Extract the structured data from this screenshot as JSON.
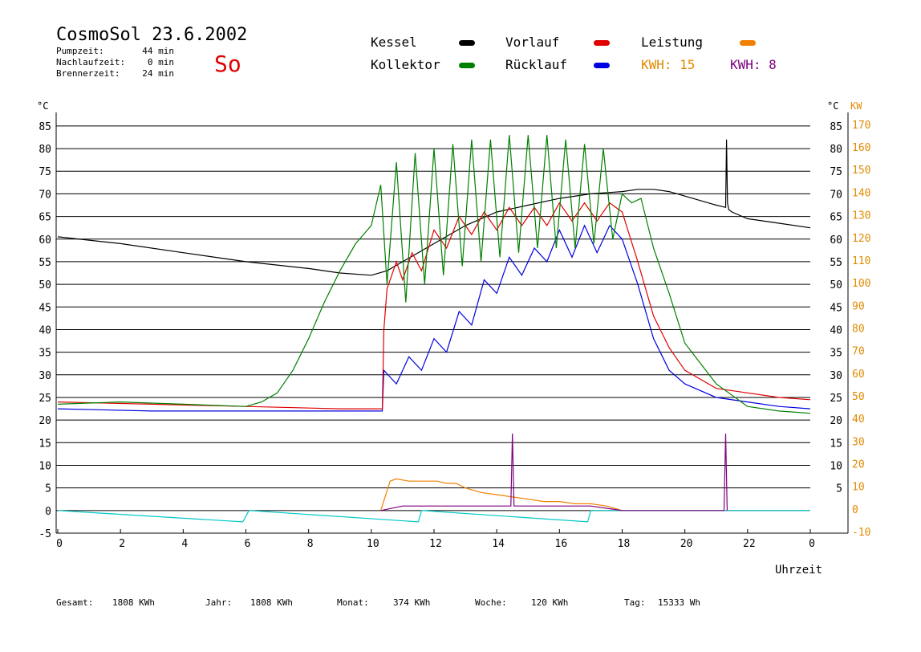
{
  "header": {
    "title": "CosmoSol 23.6.2002",
    "day": "So",
    "stats": [
      {
        "label": "Pumpzeit:",
        "value": "44 min"
      },
      {
        "label": "Nachlaufzeit:",
        "value": "0 min"
      },
      {
        "label": "Brennerzeit:",
        "value": "24 min"
      }
    ]
  },
  "legend": {
    "items": [
      {
        "label": "Kessel",
        "color": "#000000"
      },
      {
        "label": "Vorlauf",
        "color": "#e00000"
      },
      {
        "label": "Leistung",
        "color": "#f08000"
      },
      {
        "label": "Kollektor",
        "color": "#008000"
      },
      {
        "label": "Rücklauf",
        "color": "#0000e0"
      }
    ],
    "kwh": [
      {
        "label": "KWH: 15",
        "color": "#e08a00"
      },
      {
        "label": "KWH: 8",
        "color": "#800080"
      }
    ]
  },
  "axes": {
    "left_unit": "°C",
    "right_unit_c": "°C",
    "right_unit_kw": "KW",
    "x_label": "Uhrzeit",
    "x_ticks": [
      "0",
      "2",
      "4",
      "6",
      "8",
      "10",
      "12",
      "14",
      "16",
      "18",
      "20",
      "22",
      "0"
    ],
    "y_ticks": [
      85,
      80,
      75,
      70,
      65,
      60,
      55,
      50,
      45,
      40,
      35,
      30,
      25,
      20,
      15,
      10,
      5,
      0,
      -5
    ],
    "right_c_ticks": [
      "85",
      "80",
      "75",
      "70",
      "65",
      "60",
      "55",
      "50",
      "45",
      "40",
      "35",
      "30",
      "25",
      "20",
      "15",
      "10",
      "5",
      "",
      ""
    ],
    "kw_ticks": [
      "170",
      "160",
      "150",
      "140",
      "130",
      "120",
      "110",
      "100",
      "90",
      "80",
      "70",
      "60",
      "50",
      "40",
      "30",
      "20",
      "10",
      "0",
      "-10"
    ]
  },
  "footer": {
    "items": [
      {
        "label": "Gesamt:",
        "value": "1808 KWh"
      },
      {
        "label": "Jahr:",
        "value": "1808 KWh"
      },
      {
        "label": "Monat:",
        "value": "374 KWh"
      },
      {
        "label": "Woche:",
        "value": "120 KWh"
      },
      {
        "label": "Tag:",
        "value": "15333 Wh"
      }
    ]
  },
  "chart_data": {
    "type": "line",
    "xlabel": "Uhrzeit",
    "ylabel": "°C",
    "xlim": [
      0,
      24
    ],
    "ylim": [
      -5,
      88
    ],
    "grid": true,
    "series": [
      {
        "name": "Kessel",
        "color": "#000000",
        "x": [
          0,
          2,
          4,
          6,
          8,
          9,
          10,
          10.5,
          11,
          12,
          13,
          14,
          15,
          16,
          17,
          18,
          18.5,
          19,
          19.5,
          20,
          21,
          21.3,
          21.33,
          21.36,
          21.4,
          21.5,
          22,
          23,
          24
        ],
        "y": [
          60.5,
          59,
          57,
          55,
          53.5,
          52.5,
          52,
          53,
          55,
          59,
          63,
          66,
          67.5,
          69,
          70,
          70.5,
          71,
          71,
          70.5,
          69.5,
          67.5,
          67,
          82,
          68,
          66.5,
          66,
          64.5,
          63.5,
          62.5
        ]
      },
      {
        "name": "Kollektor",
        "color": "#008000",
        "x": [
          0,
          2,
          4,
          6,
          6.5,
          7,
          7.5,
          8,
          8.5,
          9,
          9.5,
          10,
          10.3,
          10.5,
          10.8,
          11.1,
          11.4,
          11.7,
          12,
          12.3,
          12.6,
          12.9,
          13.2,
          13.5,
          13.8,
          14.1,
          14.4,
          14.7,
          15,
          15.3,
          15.6,
          15.9,
          16.2,
          16.5,
          16.8,
          17.1,
          17.4,
          17.7,
          18,
          18.3,
          18.6,
          19,
          19.5,
          20,
          21,
          22,
          23,
          24
        ],
        "y": [
          23.5,
          24,
          23.5,
          23,
          24,
          26,
          31,
          38,
          46,
          53,
          59,
          63,
          72,
          50,
          77,
          46,
          79,
          50,
          80,
          52,
          81,
          54,
          82,
          55,
          82,
          56,
          83,
          57,
          83,
          58,
          83,
          58,
          82,
          58,
          81,
          59,
          80,
          60,
          70,
          68,
          69,
          58,
          48,
          37,
          28,
          23,
          22,
          21.5
        ]
      },
      {
        "name": "Vorlauf",
        "color": "#e00000",
        "x": [
          0,
          3,
          6,
          9,
          10.35,
          10.4,
          10.5,
          10.8,
          11,
          11.3,
          11.6,
          12,
          12.4,
          12.8,
          13.2,
          13.6,
          14,
          14.4,
          14.8,
          15.2,
          15.6,
          16,
          16.4,
          16.8,
          17.2,
          17.6,
          18,
          18.5,
          19,
          19.5,
          20,
          21,
          22,
          23,
          24
        ],
        "y": [
          24,
          23.5,
          23,
          22.5,
          22.5,
          40,
          49,
          55,
          51,
          57,
          53,
          62,
          58,
          65,
          61,
          66,
          62,
          67,
          63,
          67,
          63,
          68,
          64,
          68,
          64,
          68,
          66,
          55,
          43,
          36,
          31,
          27,
          26,
          25,
          24.5
        ]
      },
      {
        "name": "Rücklauf",
        "color": "#0000e0",
        "x": [
          0,
          3,
          6,
          9,
          10.35,
          10.4,
          10.8,
          11.2,
          11.6,
          12,
          12.4,
          12.8,
          13.2,
          13.6,
          14,
          14.4,
          14.8,
          15.2,
          15.6,
          16,
          16.4,
          16.8,
          17.2,
          17.6,
          18,
          18.5,
          19,
          19.5,
          20,
          21,
          22,
          23,
          24
        ],
        "y": [
          22.5,
          22,
          22,
          22,
          22,
          31,
          28,
          34,
          31,
          38,
          35,
          44,
          41,
          51,
          48,
          56,
          52,
          58,
          55,
          62,
          56,
          63,
          57,
          63,
          60,
          50,
          38,
          31,
          28,
          25,
          24,
          23,
          22.5
        ]
      },
      {
        "name": "Leistung",
        "color": "#f08000",
        "x": [
          10.3,
          10.6,
          10.8,
          11.2,
          11.5,
          11.8,
          12.1,
          12.4,
          12.7,
          13,
          13.5,
          14,
          14.5,
          15,
          15.5,
          16,
          16.5,
          17,
          17.5,
          18
        ],
        "y": [
          0,
          6.5,
          7,
          6.5,
          6.5,
          6.5,
          6.5,
          6,
          6,
          5,
          4,
          3.5,
          3,
          2.5,
          2,
          2,
          1.5,
          1.5,
          1,
          0
        ]
      },
      {
        "name": "Brenner",
        "color": "#800080",
        "x": [
          10.3,
          11,
          12,
          13,
          14,
          14.45,
          14.5,
          14.55,
          15,
          16,
          17,
          18,
          21.25,
          21.3,
          21.35
        ],
        "y": [
          0,
          1,
          1,
          1,
          1,
          1,
          17,
          1,
          1,
          1,
          1,
          0,
          0,
          17,
          0
        ]
      },
      {
        "name": "Pumpe",
        "color": "#00c8c8",
        "x": [
          0,
          5.9,
          6.1,
          11.5,
          11.6,
          16.9,
          17,
          24
        ],
        "y": [
          0,
          -2.5,
          0,
          -2.5,
          0,
          -2.5,
          0,
          0
        ]
      }
    ]
  }
}
